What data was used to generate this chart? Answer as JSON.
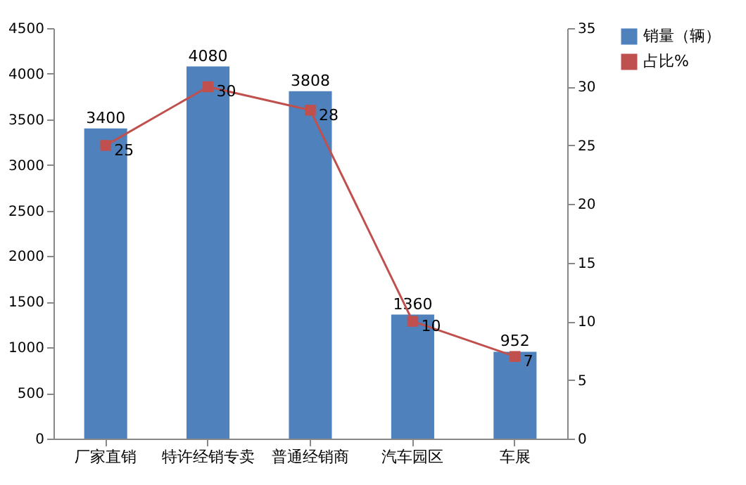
{
  "chart_data": {
    "type": "bar",
    "categories": [
      "厂家直销",
      "特许经销专卖",
      "普通经销商",
      "汽车园区",
      "车展"
    ],
    "series": [
      {
        "name": "销量（辆）",
        "color": "#4f81bd",
        "values": [
          3400,
          4080,
          3808,
          1360,
          952
        ]
      },
      {
        "name": "占比%",
        "type": "line",
        "axis": "y2",
        "color": "#c0504d",
        "values": [
          25,
          30,
          28,
          10,
          7
        ]
      }
    ],
    "ylim": [
      0,
      4500
    ],
    "yticks": [
      0,
      500,
      1000,
      1500,
      2000,
      2500,
      3000,
      3500,
      4000,
      4500
    ],
    "y2lim": [
      0,
      35
    ],
    "y2ticks": [
      0,
      5,
      10,
      15,
      20,
      25,
      30,
      35
    ],
    "data_labels": true,
    "legend": "right",
    "marker": "square",
    "grid": false
  }
}
